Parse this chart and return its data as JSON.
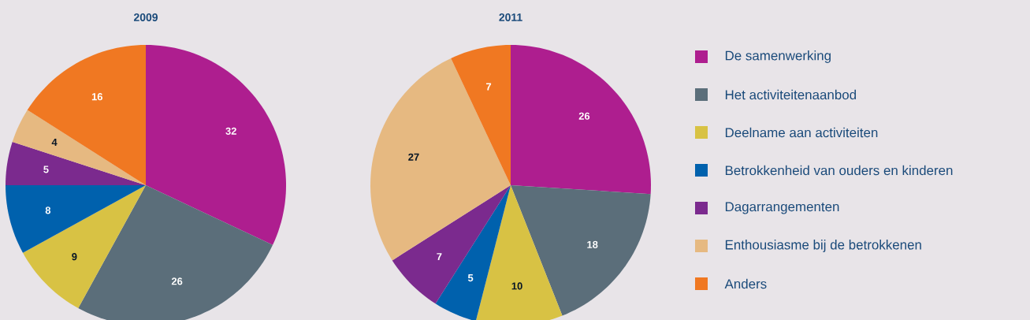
{
  "chart_data": {
    "type": "pie",
    "categories": [
      "De samenwerking",
      "Het activiteitenaanbod",
      "Deelname aan activiteiten",
      "Betrokkenheid van ouders en kinderen",
      "Dagarrangementen",
      "Enthousiasme bij de betrokkenen",
      "Anders"
    ],
    "colors": [
      "#ae1e8f",
      "#5b6e7a",
      "#d8c244",
      "#0061ad",
      "#7b2a8e",
      "#e6b981",
      "#f07822"
    ],
    "series": [
      {
        "name": "2009",
        "values": [
          32,
          26,
          9,
          8,
          5,
          4,
          16
        ]
      },
      {
        "name": "2011",
        "values": [
          26,
          18,
          10,
          5,
          7,
          27,
          7
        ]
      }
    ],
    "data_labels": true,
    "legend": "right"
  }
}
